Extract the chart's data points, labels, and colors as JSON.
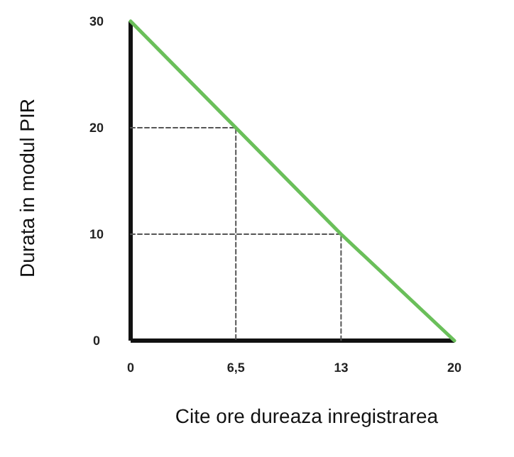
{
  "chart_data": {
    "type": "line",
    "xlabel": "Cite ore dureaza inregistrarea",
    "ylabel": "Durata in modul PIR",
    "xlim": [
      0,
      20
    ],
    "ylim": [
      0,
      30
    ],
    "xticks": [
      0,
      {
        "value": 6.5,
        "label": "6,5"
      },
      13,
      20
    ],
    "yticks": [
      0,
      10,
      20,
      30
    ],
    "grid": false,
    "marker": "none",
    "series": [
      {
        "color": "#6abf5a",
        "x": [
          0,
          6.5,
          13,
          20
        ],
        "values": [
          30,
          20,
          10,
          0
        ],
        "line_style": "solid"
      },
      {
        "color": "#555555",
        "x": [
          0,
          6.5,
          6.5
        ],
        "values": [
          20,
          20,
          0
        ],
        "line_style": "dashed"
      },
      {
        "color": "#555555",
        "x": [
          0,
          13,
          13
        ],
        "values": [
          10,
          10,
          0
        ],
        "line_style": "dashed"
      }
    ]
  }
}
